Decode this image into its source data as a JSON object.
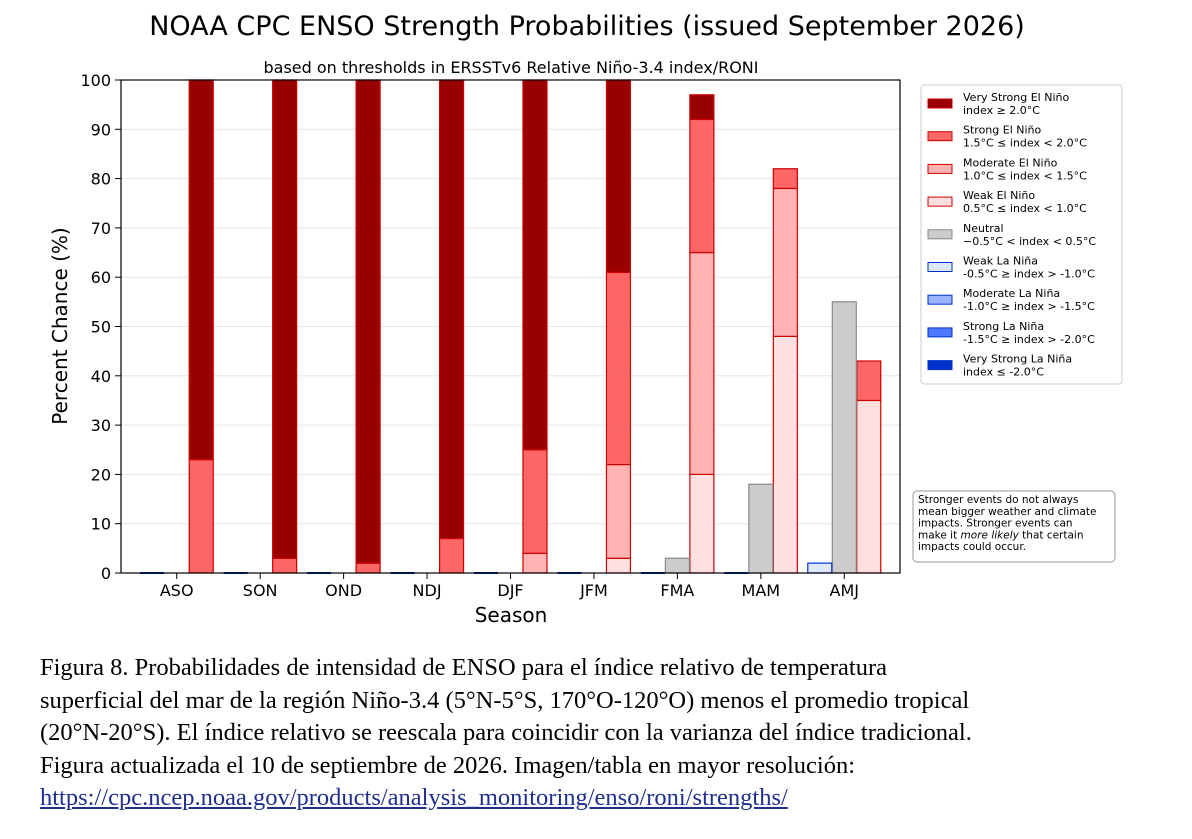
{
  "chart_data": {
    "type": "bar",
    "stacked": true,
    "title": "NOAA CPC ENSO Strength Probabilities (issued September 2026)",
    "subtitle": "based on thresholds in ERSSTv6 Relative Niño-3.4 index/RONI",
    "xlabel": "Season",
    "ylabel": "Percent Chance (%)",
    "ylim": [
      0,
      100
    ],
    "yticks": [
      "0",
      "10",
      "20",
      "30",
      "40",
      "50",
      "60",
      "70",
      "80",
      "90",
      "100"
    ],
    "grid": "horizontal",
    "legend_position": "right",
    "categories": [
      "ASO",
      "SON",
      "OND",
      "NDJ",
      "DJF",
      "JFM",
      "FMA",
      "MAM",
      "AMJ"
    ],
    "groups": [
      {
        "name": "La Niña",
        "bar": "left"
      },
      {
        "name": "Neutral",
        "bar": "center"
      },
      {
        "name": "El Niño",
        "bar": "right"
      }
    ],
    "series": [
      {
        "key": "vs_el",
        "group": "El Niño",
        "label_line1": "Very Strong El Niño",
        "label_line2": "index ≥ 2.0°C",
        "color": "#990000",
        "edge": "#cc0000",
        "values": [
          77,
          97,
          98,
          93,
          75,
          39,
          5,
          0,
          0
        ]
      },
      {
        "key": "s_el",
        "group": "El Niño",
        "label_line1": "Strong El Niño",
        "label_line2": "1.5°C ≤ index < 2.0°C",
        "color": "#ff6666",
        "edge": "#cc0000",
        "values": [
          23,
          3,
          2,
          7,
          21,
          39,
          27,
          4,
          8
        ]
      },
      {
        "key": "m_el",
        "group": "El Niño",
        "label_line1": "Moderate El Niño",
        "label_line2": "1.0°C ≤ index < 1.5°C",
        "color": "#ffb3b3",
        "edge": "#cc0000",
        "values": [
          0,
          0,
          0,
          0,
          4,
          19,
          45,
          30,
          0
        ]
      },
      {
        "key": "w_el",
        "group": "El Niño",
        "label_line1": "Weak El Niño",
        "label_line2": "0.5°C ≤ index < 1.0°C",
        "color": "#ffe0e0",
        "edge": "#cc0000",
        "values": [
          0,
          0,
          0,
          0,
          0,
          3,
          20,
          48,
          35
        ]
      },
      {
        "key": "neutral",
        "group": "Neutral",
        "label_line1": "Neutral",
        "label_line2": "−0.5°C < index < 0.5°C",
        "color": "#cccccc",
        "edge": "#888888",
        "values": [
          0,
          0,
          0,
          0,
          0,
          0,
          3,
          18,
          55
        ]
      },
      {
        "key": "w_la",
        "group": "La Niña",
        "label_line1": "Weak La Niña",
        "label_line2": "-0.5°C ≥ index > -1.0°C",
        "color": "#e0e8ff",
        "edge": "#0033cc",
        "values": [
          0,
          0,
          0,
          0,
          0,
          0,
          0,
          0,
          2
        ]
      },
      {
        "key": "m_la",
        "group": "La Niña",
        "label_line1": "Moderate La Niña",
        "label_line2": "-1.0°C ≥ index > -1.5°C",
        "color": "#99b3ff",
        "edge": "#0033cc",
        "values": [
          0,
          0,
          0,
          0,
          0,
          0,
          0,
          0,
          0
        ]
      },
      {
        "key": "s_la",
        "group": "La Niña",
        "label_line1": "Strong La Niña",
        "label_line2": "-1.5°C ≥ index > -2.0°C",
        "color": "#4d79ff",
        "edge": "#0033cc",
        "values": [
          0,
          0,
          0,
          0,
          0,
          0,
          0,
          0,
          0
        ]
      },
      {
        "key": "vs_la",
        "group": "La Niña",
        "label_line1": "Very Strong La Niña",
        "label_line2": "index ≤ -2.0°C",
        "color": "#0033cc",
        "edge": "#0033cc",
        "values": [
          0,
          0,
          0,
          0,
          0,
          0,
          0,
          0,
          0
        ]
      }
    ],
    "note_lines": [
      [
        "Stronger events do not always"
      ],
      [
        "mean bigger weather and climate"
      ],
      [
        "impacts. Stronger events can"
      ],
      [
        "make it ",
        {
          "italic": "more likely"
        },
        " that certain"
      ],
      [
        "impacts could occur."
      ]
    ]
  },
  "caption": {
    "lines": [
      "Figura 8. Probabilidades de intensidad de ENSO para el índice relativo de temperatura",
      "superficial del mar de la región Niño-3.4 (5°N-5°S, 170°O-120°O) menos el promedio tropical",
      "(20°N-20°S). El índice relativo se reescala para coincidir con la varianza del índice tradicional.",
      "Figura actualizada el 10 de septiembre de 2026. Imagen/tabla en mayor resolución:"
    ],
    "link": "https://cpc.ncep.noaa.gov/products/analysis_monitoring/enso/roni/strengths/"
  }
}
